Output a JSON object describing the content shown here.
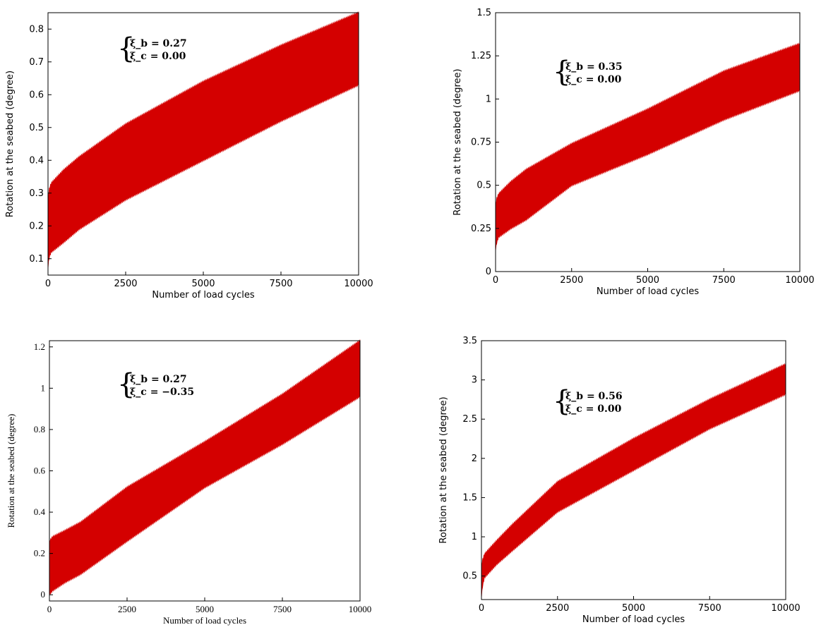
{
  "chart_data": [
    {
      "type": "area",
      "panel": "top-left",
      "title": "",
      "xlabel": "Number of load cycles",
      "ylabel": "Rotation at the seabed (degree)",
      "xlim": [
        0,
        10000
      ],
      "ylim": [
        0.05,
        0.85
      ],
      "x_ticks": [
        0,
        2500,
        5000,
        7500,
        10000
      ],
      "x_tick_labels": [
        "0",
        "2500",
        "5000",
        "7500",
        "10000"
      ],
      "y_ticks": [
        0.1,
        0.2,
        0.3,
        0.4,
        0.5,
        0.6,
        0.7,
        0.8
      ],
      "y_tick_labels": [
        "0.1",
        "0.2",
        "0.3",
        "0.4",
        "0.5",
        "0.6",
        "0.7",
        "0.8"
      ],
      "grid": false,
      "color": "#d40000",
      "annotation": [
        "ξ_b = 0.27",
        "ξ_c = 0.00"
      ],
      "x": [
        0,
        30,
        100,
        500,
        1000,
        2500,
        5000,
        7500,
        10000
      ],
      "upper": [
        0.28,
        0.31,
        0.33,
        0.37,
        0.41,
        0.51,
        0.64,
        0.75,
        0.85
      ],
      "lower": [
        0.07,
        0.1,
        0.12,
        0.15,
        0.19,
        0.28,
        0.4,
        0.52,
        0.63
      ]
    },
    {
      "type": "area",
      "panel": "top-right",
      "title": "",
      "xlabel": "Number of load cycles",
      "ylabel": "Rotation at the seabed (degree)",
      "xlim": [
        0,
        10000
      ],
      "ylim": [
        0,
        1.5
      ],
      "x_ticks": [
        0,
        2500,
        5000,
        7500,
        10000
      ],
      "x_tick_labels": [
        "0",
        "2500",
        "5000",
        "7500",
        "10000"
      ],
      "y_ticks": [
        0,
        0.25,
        0.5,
        0.75,
        1,
        1.25,
        1.5
      ],
      "y_tick_labels": [
        "0",
        "0.25",
        "0.5",
        "0.75",
        "1",
        "1.25",
        "1.5"
      ],
      "grid": false,
      "color": "#d40000",
      "annotation": [
        "ξ_b = 0.35",
        "ξ_c = 0.00"
      ],
      "x": [
        0,
        30,
        100,
        500,
        1000,
        2500,
        5000,
        7500,
        10000
      ],
      "upper": [
        0.38,
        0.42,
        0.45,
        0.52,
        0.59,
        0.74,
        0.94,
        1.16,
        1.32
      ],
      "lower": [
        0.12,
        0.16,
        0.2,
        0.25,
        0.3,
        0.5,
        0.68,
        0.88,
        1.05
      ]
    },
    {
      "type": "area",
      "panel": "bottom-left",
      "title": "",
      "xlabel": "Number of load cycles",
      "ylabel": "Rotation at the seabed (degree)",
      "xlim": [
        0,
        10000
      ],
      "ylim": [
        -0.03,
        1.23
      ],
      "x_ticks": [
        0,
        2500,
        5000,
        7500,
        10000
      ],
      "x_tick_labels": [
        "0",
        "2500",
        "5000",
        "7500",
        "10000"
      ],
      "y_ticks": [
        0,
        0.2,
        0.4,
        0.6,
        0.8,
        1,
        1.2
      ],
      "y_tick_labels": [
        "0",
        "0.2",
        "0.4",
        "0.6",
        "0.8",
        "1",
        "1.2"
      ],
      "grid": false,
      "color": "#d40000",
      "annotation": [
        "ξ_b = 0.27",
        "ξ_c = −0.35"
      ],
      "x": [
        0,
        100,
        500,
        1000,
        2500,
        5000,
        7500,
        10000
      ],
      "upper": [
        0.26,
        0.28,
        0.31,
        0.35,
        0.52,
        0.74,
        0.97,
        1.23
      ],
      "lower": [
        0.0,
        0.02,
        0.06,
        0.1,
        0.26,
        0.52,
        0.73,
        0.96
      ]
    },
    {
      "type": "area",
      "panel": "bottom-right",
      "title": "",
      "xlabel": "Number of load cycles",
      "ylabel": "Rotation at the seabed (degree)",
      "xlim": [
        0,
        10000
      ],
      "ylim": [
        0.2,
        3.5
      ],
      "x_ticks": [
        0,
        2500,
        5000,
        7500,
        10000
      ],
      "x_tick_labels": [
        "0",
        "2500",
        "5000",
        "7500",
        "10000"
      ],
      "y_ticks": [
        0.5,
        1,
        1.5,
        2,
        2.5,
        3,
        3.5
      ],
      "y_tick_labels": [
        "0.5",
        "1",
        "1.5",
        "2",
        "2.5",
        "3",
        "3.5"
      ],
      "grid": false,
      "color": "#d40000",
      "annotation": [
        "ξ_b = 0.56",
        "ξ_c = 0.00"
      ],
      "x": [
        0,
        30,
        100,
        500,
        1000,
        2500,
        5000,
        7500,
        10000
      ],
      "upper": [
        0.62,
        0.7,
        0.78,
        0.95,
        1.15,
        1.7,
        2.25,
        2.75,
        3.2
      ],
      "lower": [
        0.22,
        0.35,
        0.48,
        0.65,
        0.82,
        1.32,
        1.85,
        2.38,
        2.82
      ]
    }
  ]
}
